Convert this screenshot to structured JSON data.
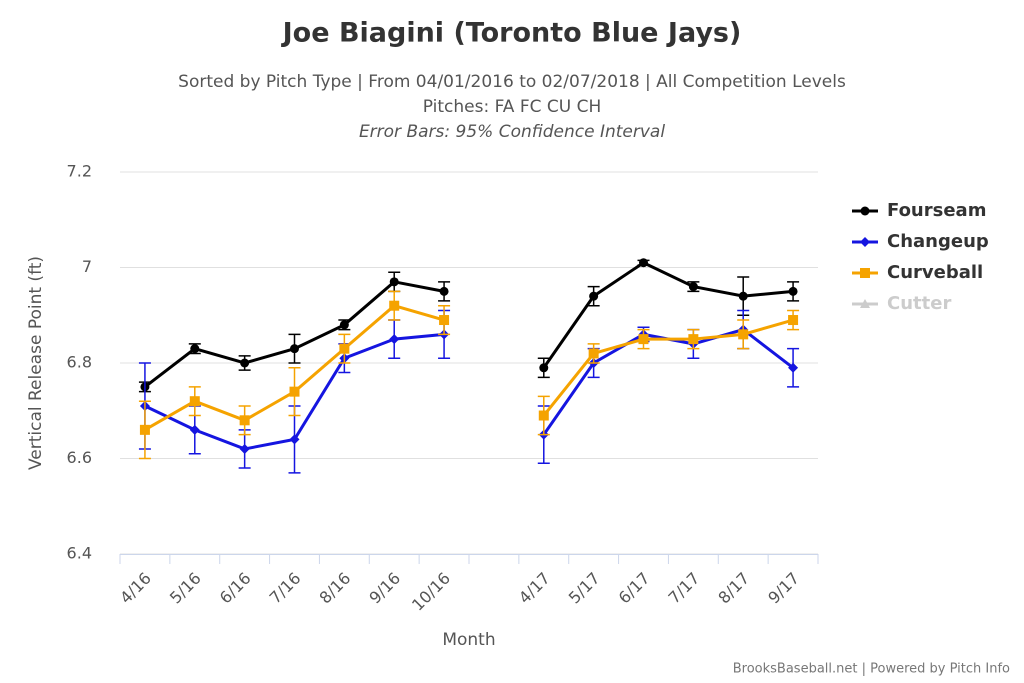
{
  "chart_data": {
    "type": "line",
    "title": "Joe Biagini (Toronto Blue Jays)",
    "subtitle": [
      "Sorted by Pitch Type | From 04/01/2016 to 02/07/2018 | All Competition Levels",
      "Pitches: FA FC CU CH",
      "Error Bars: 95% Confidence Interval"
    ],
    "x_label": "Month",
    "y_label": "Vertical Release Point (ft)",
    "credits": "BrooksBaseball.net | Powered by Pitch Info",
    "categories": [
      "4/16",
      "5/16",
      "6/16",
      "7/16",
      "8/16",
      "9/16",
      "10/16",
      null,
      "4/17",
      "5/17",
      "6/17",
      "7/17",
      "8/17",
      "9/17"
    ],
    "ylim": [
      6.4,
      7.2
    ],
    "yticks": [
      6.4,
      6.6,
      6.8,
      7,
      7.2
    ],
    "grid": true,
    "legend": "right",
    "series": [
      {
        "name": "Fourseam",
        "color": "#000000",
        "marker": "circle",
        "values": [
          6.75,
          6.83,
          6.8,
          6.83,
          6.88,
          6.97,
          6.95,
          null,
          6.79,
          6.94,
          7.01,
          6.96,
          6.94,
          6.95
        ],
        "errors": [
          0.01,
          0.01,
          0.015,
          0.03,
          0.01,
          0.02,
          0.02,
          null,
          0.02,
          0.02,
          0.005,
          0.01,
          0.04,
          0.02
        ]
      },
      {
        "name": "Changeup",
        "color": "#1515e0",
        "marker": "diamond",
        "values": [
          6.71,
          6.66,
          6.62,
          6.64,
          6.81,
          6.85,
          6.86,
          null,
          6.65,
          6.8,
          6.86,
          6.84,
          6.87,
          6.79
        ],
        "errors": [
          0.09,
          0.05,
          0.04,
          0.07,
          0.03,
          0.04,
          0.05,
          null,
          0.06,
          0.03,
          0.015,
          0.03,
          0.04,
          0.04
        ]
      },
      {
        "name": "Curveball",
        "color": "#f5a300",
        "marker": "square",
        "values": [
          6.66,
          6.72,
          6.68,
          6.74,
          6.83,
          6.92,
          6.89,
          null,
          6.69,
          6.82,
          6.85,
          6.85,
          6.86,
          6.89
        ],
        "errors": [
          0.06,
          0.03,
          0.03,
          0.05,
          0.03,
          0.03,
          0.03,
          null,
          0.04,
          0.02,
          0.02,
          0.02,
          0.03,
          0.02
        ]
      },
      {
        "name": "Cutter",
        "color": "#cccccc",
        "marker": "triangle",
        "hidden": true,
        "values": [
          null,
          null,
          null,
          null,
          null,
          null,
          null,
          null,
          null,
          null,
          null,
          null,
          null,
          null
        ],
        "errors": [
          null,
          null,
          null,
          null,
          null,
          null,
          null,
          null,
          null,
          null,
          null,
          null,
          null,
          null
        ]
      }
    ]
  }
}
